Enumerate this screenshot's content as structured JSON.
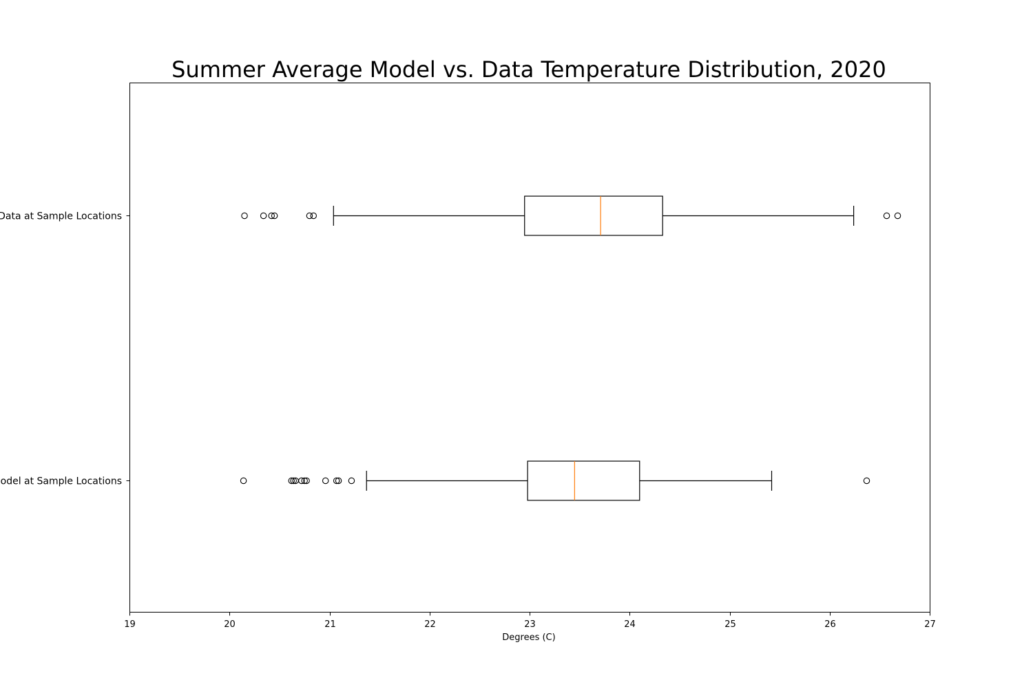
{
  "chart_data": {
    "type": "boxplot",
    "orientation": "horizontal",
    "title": "Summer Average Model vs. Data Temperature Distribution, 2020",
    "xlabel": "Degrees (C)",
    "ylabel": "",
    "xlim": [
      19,
      27
    ],
    "xticks": [
      19,
      20,
      21,
      22,
      23,
      24,
      25,
      26,
      27
    ],
    "grid": false,
    "colors": {
      "box": "#000000",
      "median": "#ff7f0e",
      "whisker": "#000000",
      "flier": "#000000",
      "background": "#ffffff"
    },
    "series": [
      {
        "name": "Data at Sample Locations",
        "whisker_low": 21.04,
        "q1": 22.95,
        "median": 23.71,
        "q3": 24.33,
        "whisker_high": 26.24,
        "fliers": [
          20.15,
          20.34,
          20.42,
          20.45,
          20.8,
          20.84,
          26.57,
          26.68
        ]
      },
      {
        "name": "Model at Sample Locations",
        "whisker_low": 21.37,
        "q1": 22.98,
        "median": 23.45,
        "q3": 24.1,
        "whisker_high": 25.42,
        "fliers": [
          20.14,
          20.62,
          20.64,
          20.66,
          20.72,
          20.75,
          20.77,
          20.96,
          21.07,
          21.09,
          21.22,
          26.37
        ]
      }
    ]
  }
}
